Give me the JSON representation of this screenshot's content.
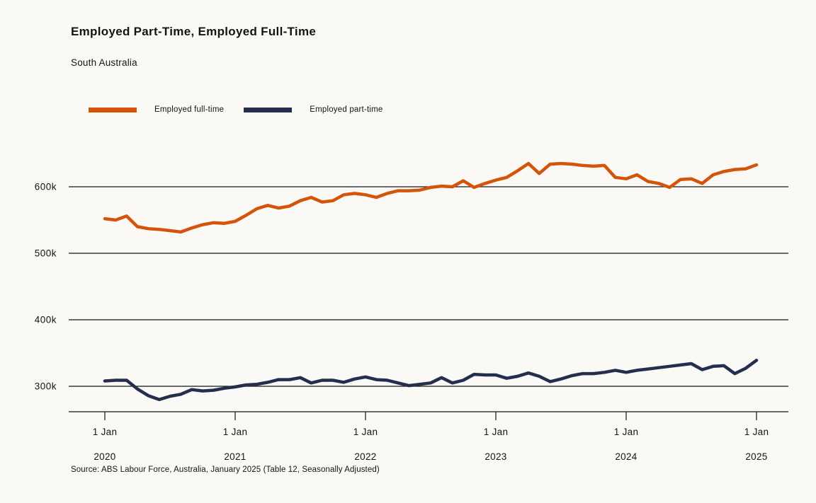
{
  "chart_data": {
    "type": "line",
    "title": "Employed Part-Time, Employed Full-Time",
    "subtitle": "South Australia",
    "source": "Source: ABS Labour Force, Australia, January 2025 (Table 12, Seasonally Adjusted)",
    "grid": "horizontal",
    "legend_position": "top-left",
    "x_frequency": "monthly",
    "x_start_label": "1 Jan 2020",
    "x_end_label": "1 Jan 2025",
    "x_ticks": [
      {
        "month_index": 0,
        "label": "1 Jan",
        "year": "2020"
      },
      {
        "month_index": 12,
        "label": "1 Jan",
        "year": "2021"
      },
      {
        "month_index": 24,
        "label": "1 Jan",
        "year": "2022"
      },
      {
        "month_index": 36,
        "label": "1 Jan",
        "year": "2023"
      },
      {
        "month_index": 48,
        "label": "1 Jan",
        "year": "2024"
      },
      {
        "month_index": 60,
        "label": "1 Jan",
        "year": "2025"
      }
    ],
    "y_axis": {
      "tick_labels": [
        "600k",
        "500k",
        "400k",
        "300k"
      ],
      "ticks_thousands": [
        600,
        500,
        400,
        300
      ],
      "ylim_thousands": [
        262,
        660
      ]
    },
    "series": [
      {
        "name": "Employed full-time",
        "color": "#d4540a",
        "start": "Jan 2020",
        "values_thousands": [
          552,
          550,
          556,
          540,
          537,
          536,
          534,
          532,
          538,
          543,
          546,
          545,
          548,
          557,
          567,
          572,
          568,
          571,
          579,
          584,
          577,
          579,
          588,
          590,
          588,
          584,
          590,
          594,
          594,
          595,
          599,
          601,
          600,
          609,
          599,
          605,
          610,
          614,
          624,
          635,
          620,
          634,
          635,
          634,
          632,
          631,
          632,
          614,
          612,
          618,
          608,
          605,
          599,
          611,
          612,
          605,
          618,
          623,
          626,
          627,
          633
        ]
      },
      {
        "name": "Employed part-time",
        "color": "#262e4d",
        "start": "Jan 2020",
        "values_thousands": [
          308,
          309,
          309,
          296,
          286,
          280,
          285,
          288,
          295,
          293,
          294,
          297,
          299,
          302,
          303,
          306,
          310,
          310,
          313,
          305,
          309,
          309,
          306,
          311,
          314,
          310,
          309,
          305,
          301,
          303,
          305,
          313,
          305,
          309,
          318,
          317,
          317,
          312,
          315,
          320,
          315,
          307,
          311,
          316,
          319,
          319,
          321,
          324,
          321,
          324,
          326,
          328,
          330,
          332,
          334,
          325,
          330,
          331,
          319,
          327,
          339
        ]
      }
    ]
  }
}
